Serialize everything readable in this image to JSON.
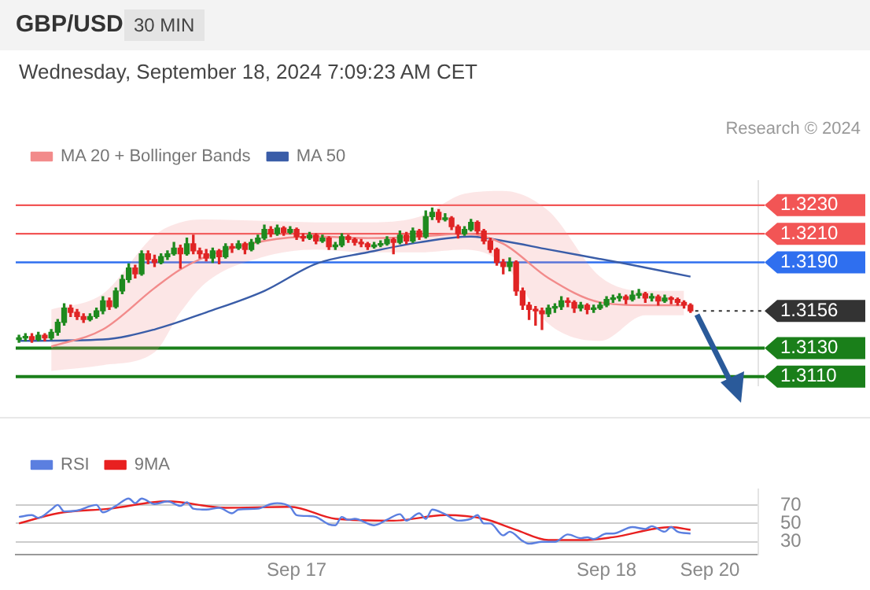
{
  "chart_data": [
    {
      "type": "candlestick",
      "title": "GBP/USD",
      "subtitle": "30 MIN",
      "annotations": [
        "Wednesday, September 18, 2024 7:09:23 AM CET",
        "Research © 2024"
      ],
      "categories": [
        null,
        null,
        null,
        null,
        null,
        null,
        null,
        null,
        null,
        null,
        null,
        null,
        null,
        null,
        null,
        null,
        null,
        null,
        null,
        null,
        null,
        null,
        null,
        null,
        null,
        null,
        null,
        null,
        null,
        null,
        null,
        null,
        null,
        null,
        null,
        null,
        null,
        null,
        null,
        null,
        null,
        null,
        null,
        null,
        null,
        null,
        null,
        null,
        null,
        null,
        null,
        null,
        null,
        null,
        null,
        null,
        null,
        null,
        null,
        null,
        null,
        null,
        null,
        null,
        null,
        null,
        null,
        null,
        null,
        null,
        null,
        null,
        null,
        null,
        null,
        null,
        null,
        null,
        null,
        null,
        null,
        null,
        null,
        null,
        null,
        null,
        null,
        null,
        null,
        null,
        null,
        null,
        null,
        null,
        null,
        null,
        null,
        null,
        null,
        null,
        null,
        null,
        null,
        null,
        null,
        null,
        null,
        null,
        null,
        null,
        null,
        null,
        null,
        null,
        null
      ],
      "ohlc": [
        [
          1.3136,
          1.3139,
          1.3134,
          1.3137
        ],
        [
          1.3137,
          1.314,
          1.3135,
          1.3138
        ],
        [
          1.3138,
          1.314,
          1.3134,
          1.3136
        ],
        [
          1.3136,
          1.3141,
          1.3135,
          1.3139
        ],
        [
          1.3139,
          1.314,
          1.3135,
          1.3137
        ],
        [
          1.3137,
          1.3143,
          1.3136,
          1.3141
        ],
        [
          1.3141,
          1.315,
          1.3139,
          1.3148
        ],
        [
          1.3148,
          1.3161,
          1.3146,
          1.3158
        ],
        [
          1.3158,
          1.316,
          1.3152,
          1.3155
        ],
        [
          1.3155,
          1.3157,
          1.315,
          1.3152
        ],
        [
          1.3152,
          1.3154,
          1.3148,
          1.315
        ],
        [
          1.315,
          1.3154,
          1.3149,
          1.3152
        ],
        [
          1.3152,
          1.3158,
          1.3151,
          1.3156
        ],
        [
          1.3156,
          1.3166,
          1.3154,
          1.3163
        ],
        [
          1.3163,
          1.3165,
          1.3157,
          1.3159
        ],
        [
          1.3159,
          1.3172,
          1.3158,
          1.317
        ],
        [
          1.317,
          1.3181,
          1.3168,
          1.3178
        ],
        [
          1.3178,
          1.3189,
          1.3176,
          1.3186
        ],
        [
          1.3186,
          1.3188,
          1.3179,
          1.3182
        ],
        [
          1.3182,
          1.3198,
          1.3181,
          1.3196
        ],
        [
          1.3196,
          1.3198,
          1.3189,
          1.3192
        ],
        [
          1.3192,
          1.3195,
          1.3187,
          1.319
        ],
        [
          1.319,
          1.3196,
          1.3189,
          1.3194
        ],
        [
          1.3194,
          1.3198,
          1.3192,
          1.3196
        ],
        [
          1.3196,
          1.3204,
          1.3195,
          1.32
        ],
        [
          1.32,
          1.3202,
          1.3186,
          1.3196
        ],
        [
          1.3196,
          1.3207,
          1.3195,
          1.3203
        ],
        [
          1.3203,
          1.3209,
          1.3196,
          1.3198
        ],
        [
          1.3198,
          1.32,
          1.3193,
          1.3196
        ],
        [
          1.3196,
          1.3199,
          1.3191,
          1.3193
        ],
        [
          1.3193,
          1.32,
          1.319,
          1.3198
        ],
        [
          1.3198,
          1.3199,
          1.3189,
          1.3194
        ],
        [
          1.3194,
          1.3203,
          1.3193,
          1.3201
        ],
        [
          1.3201,
          1.3203,
          1.3197,
          1.32
        ],
        [
          1.32,
          1.3205,
          1.3199,
          1.3203
        ],
        [
          1.3203,
          1.3204,
          1.3196,
          1.3199
        ],
        [
          1.3199,
          1.3206,
          1.3198,
          1.3204
        ],
        [
          1.3204,
          1.3209,
          1.3203,
          1.3207
        ],
        [
          1.3207,
          1.3216,
          1.3206,
          1.3213
        ],
        [
          1.3213,
          1.3215,
          1.3208,
          1.321
        ],
        [
          1.321,
          1.3216,
          1.3209,
          1.3214
        ],
        [
          1.3214,
          1.3215,
          1.3209,
          1.3211
        ],
        [
          1.3211,
          1.3215,
          1.321,
          1.3213
        ],
        [
          1.3213,
          1.3214,
          1.3206,
          1.3208
        ],
        [
          1.3208,
          1.321,
          1.3205,
          1.3207
        ],
        [
          1.3207,
          1.3211,
          1.3206,
          1.3209
        ],
        [
          1.3209,
          1.321,
          1.3203,
          1.3205
        ],
        [
          1.3205,
          1.3209,
          1.3204,
          1.3207
        ],
        [
          1.3207,
          1.3208,
          1.3199,
          1.3201
        ],
        [
          1.3201,
          1.3204,
          1.3199,
          1.3202
        ],
        [
          1.3202,
          1.321,
          1.3201,
          1.3208
        ],
        [
          1.3208,
          1.3209,
          1.3204,
          1.3206
        ],
        [
          1.3206,
          1.3207,
          1.3202,
          1.3204
        ],
        [
          1.3204,
          1.3206,
          1.3201,
          1.3203
        ],
        [
          1.3203,
          1.3204,
          1.3199,
          1.3201
        ],
        [
          1.3201,
          1.3204,
          1.32,
          1.3202
        ],
        [
          1.3202,
          1.3205,
          1.3201,
          1.3203
        ],
        [
          1.3203,
          1.3208,
          1.3202,
          1.3206
        ],
        [
          1.3206,
          1.3207,
          1.3196,
          1.3204
        ],
        [
          1.3204,
          1.3212,
          1.3203,
          1.3209
        ],
        [
          1.3209,
          1.3211,
          1.3203,
          1.3205
        ],
        [
          1.3205,
          1.3214,
          1.3204,
          1.3212
        ],
        [
          1.3212,
          1.3213,
          1.3206,
          1.3208
        ],
        [
          1.3208,
          1.3226,
          1.3207,
          1.3222
        ],
        [
          1.3222,
          1.3228,
          1.322,
          1.3225
        ],
        [
          1.3225,
          1.3227,
          1.3218,
          1.322
        ],
        [
          1.322,
          1.3224,
          1.3219,
          1.3221
        ],
        [
          1.3221,
          1.3222,
          1.3213,
          1.3215
        ],
        [
          1.3215,
          1.3216,
          1.3207,
          1.321
        ],
        [
          1.321,
          1.3215,
          1.3209,
          1.3213
        ],
        [
          1.3213,
          1.322,
          1.3212,
          1.3218
        ],
        [
          1.3218,
          1.3219,
          1.321,
          1.3212
        ],
        [
          1.3212,
          1.3213,
          1.3203,
          1.3205
        ],
        [
          1.3205,
          1.3207,
          1.3197,
          1.3199
        ],
        [
          1.3199,
          1.32,
          1.3188,
          1.319
        ],
        [
          1.319,
          1.3192,
          1.3182,
          1.3187
        ],
        [
          1.3187,
          1.3193,
          1.3184,
          1.319
        ],
        [
          1.319,
          1.3191,
          1.3167,
          1.317
        ],
        [
          1.317,
          1.3172,
          1.3157,
          1.316
        ],
        [
          1.316,
          1.3162,
          1.315,
          1.3157
        ],
        [
          1.3157,
          1.3159,
          1.3146,
          1.3156
        ],
        [
          1.3156,
          1.3158,
          1.3143,
          1.3154
        ],
        [
          1.3154,
          1.316,
          1.3152,
          1.3158
        ],
        [
          1.3158,
          1.3161,
          1.3155,
          1.3159
        ],
        [
          1.3159,
          1.3166,
          1.3157,
          1.3163
        ],
        [
          1.3163,
          1.3165,
          1.3159,
          1.3162
        ],
        [
          1.3162,
          1.3163,
          1.3155,
          1.3158
        ],
        [
          1.3158,
          1.3162,
          1.3156,
          1.316
        ],
        [
          1.316,
          1.3161,
          1.3154,
          1.3157
        ],
        [
          1.3157,
          1.316,
          1.3155,
          1.3158
        ],
        [
          1.3158,
          1.3162,
          1.3157,
          1.316
        ],
        [
          1.316,
          1.3166,
          1.3159,
          1.3164
        ],
        [
          1.3164,
          1.3167,
          1.3162,
          1.3165
        ],
        [
          1.3165,
          1.3168,
          1.3163,
          1.3166
        ],
        [
          1.3166,
          1.3167,
          1.3161,
          1.3164
        ],
        [
          1.3164,
          1.317,
          1.3163,
          1.3167
        ],
        [
          1.3167,
          1.3171,
          1.3165,
          1.3168
        ],
        [
          1.3168,
          1.3169,
          1.3162,
          1.3165
        ],
        [
          1.3165,
          1.3168,
          1.3163,
          1.3166
        ],
        [
          1.3166,
          1.3167,
          1.316,
          1.3163
        ],
        [
          1.3163,
          1.3167,
          1.3162,
          1.3165
        ],
        [
          1.3165,
          1.3166,
          1.3161,
          1.3164
        ],
        [
          1.3164,
          1.3165,
          1.316,
          1.3162
        ],
        [
          1.3162,
          1.3163,
          1.3158,
          1.316
        ],
        [
          1.316,
          1.3161,
          1.3155,
          1.3156
        ],
        null,
        null,
        null,
        null,
        null,
        null,
        null,
        null,
        null,
        null
      ],
      "series": [
        {
          "name": "MA 20 + Bollinger Bands",
          "type": "line",
          "color": "#f28b8b",
          "values": [
            null,
            null,
            null,
            null,
            null,
            1.3131,
            null,
            null,
            null,
            null,
            null,
            null,
            null,
            1.3143,
            null,
            null,
            null,
            null,
            null,
            null,
            null,
            1.3172,
            null,
            null,
            null,
            1.3185,
            null,
            null,
            null,
            1.3194,
            null,
            null,
            null,
            null,
            null,
            null,
            null,
            null,
            1.3205,
            null,
            null,
            null,
            null,
            null,
            null,
            null,
            1.3208,
            null,
            null,
            null,
            null,
            null,
            null,
            null,
            1.3207,
            null,
            null,
            null,
            null,
            null,
            null,
            null,
            1.3208,
            null,
            null,
            null,
            null,
            null,
            null,
            1.321,
            null,
            null,
            null,
            null,
            null,
            1.3203,
            null,
            null,
            null,
            null,
            null,
            null,
            1.3179,
            null,
            null,
            null,
            null,
            null,
            null,
            null,
            1.3162,
            null,
            null,
            null,
            null,
            null,
            null,
            1.316,
            null,
            null,
            null,
            null,
            null,
            1.316,
            null,
            null,
            null,
            null,
            null,
            null,
            null,
            null,
            null,
            null,
            null
          ],
          "lower": [
            null,
            null,
            null,
            null,
            null,
            1.3114,
            null,
            null,
            null,
            null,
            null,
            null,
            null,
            1.3118,
            null,
            null,
            null,
            null,
            null,
            null,
            null,
            1.3127,
            null,
            null,
            null,
            1.3155,
            null,
            null,
            null,
            1.3176,
            null,
            null,
            null,
            null,
            null,
            null,
            null,
            null,
            1.3194,
            null,
            null,
            null,
            null,
            null,
            null,
            null,
            1.3199,
            null,
            null,
            null,
            null,
            null,
            null,
            null,
            1.3197,
            null,
            null,
            null,
            null,
            null,
            null,
            null,
            1.3197,
            null,
            null,
            null,
            null,
            null,
            null,
            1.3199,
            null,
            null,
            null,
            null,
            null,
            1.3189,
            null,
            null,
            null,
            null,
            null,
            null,
            1.3147,
            null,
            null,
            null,
            null,
            null,
            null,
            null,
            1.3135,
            null,
            null,
            null,
            null,
            null,
            null,
            1.3153,
            null,
            null,
            null,
            null,
            null,
            1.3153,
            null,
            null,
            null,
            null,
            null,
            null,
            null,
            null,
            null,
            null,
            null
          ],
          "upper": [
            null,
            null,
            null,
            null,
            null,
            1.3157,
            null,
            null,
            null,
            null,
            null,
            null,
            null,
            1.3168,
            null,
            null,
            null,
            null,
            null,
            null,
            null,
            1.3209,
            null,
            null,
            null,
            1.3218,
            null,
            null,
            null,
            1.322,
            null,
            null,
            null,
            null,
            null,
            null,
            null,
            null,
            1.3219,
            null,
            null,
            null,
            null,
            null,
            null,
            null,
            1.3218,
            null,
            null,
            null,
            null,
            null,
            null,
            null,
            1.3218,
            null,
            null,
            null,
            null,
            null,
            null,
            null,
            1.3222,
            null,
            null,
            null,
            null,
            null,
            null,
            1.3238,
            null,
            null,
            null,
            null,
            null,
            1.324,
            null,
            null,
            null,
            null,
            null,
            null,
            1.3226,
            null,
            null,
            null,
            null,
            null,
            null,
            null,
            1.318,
            null,
            null,
            null,
            null,
            null,
            null,
            1.317,
            null,
            null,
            null,
            null,
            null,
            1.317,
            null,
            null,
            null,
            null,
            null,
            null,
            null,
            null,
            null,
            null,
            null
          ]
        },
        {
          "name": "MA 50",
          "type": "line",
          "color": "#3a5da8",
          "values": [
            1.3135,
            null,
            null,
            null,
            null,
            null,
            null,
            null,
            null,
            null,
            null,
            null,
            null,
            1.3136,
            null,
            null,
            null,
            null,
            null,
            null,
            null,
            1.3143,
            null,
            null,
            null,
            null,
            null,
            null,
            null,
            1.3155,
            null,
            null,
            null,
            null,
            null,
            null,
            null,
            null,
            1.317,
            null,
            null,
            null,
            null,
            null,
            null,
            null,
            1.3189,
            null,
            null,
            null,
            null,
            null,
            null,
            null,
            1.3197,
            null,
            null,
            null,
            null,
            null,
            null,
            null,
            1.3204,
            null,
            null,
            null,
            null,
            null,
            null,
            null,
            1.3208,
            null,
            null,
            null,
            null,
            1.3205,
            null,
            null,
            null,
            null,
            null,
            null,
            1.3199,
            null,
            null,
            null,
            null,
            null,
            null,
            null,
            null,
            null,
            null,
            null,
            1.3189,
            null,
            null,
            null,
            null,
            null,
            null,
            null,
            null,
            null,
            1.318,
            null,
            null,
            null,
            null,
            null,
            null,
            null,
            null,
            null,
            null
          ]
        }
      ],
      "ylim": [
        1.3104,
        1.3247
      ],
      "yticks": [
        {
          "value": 1.311,
          "label": "1.3110"
        },
        {
          "value": 1.313,
          "label": "1.3130"
        },
        1.3156,
        {
          "value": 1.319,
          "label": "1.3190"
        },
        {
          "value": 1.321,
          "label": "1.3210"
        },
        {
          "value": 1.323,
          "label": "1.3230"
        }
      ],
      "ref_lines": [
        {
          "axis": "y",
          "value": 1.323,
          "color": "#f25555"
        },
        {
          "axis": "y",
          "value": 1.321,
          "color": "#f25555"
        },
        {
          "axis": "y",
          "value": 1.319,
          "color": "#2f6fef"
        },
        {
          "axis": "y",
          "value": 1.3156,
          "color": "#333333",
          "line_style": "dotted"
        },
        {
          "axis": "y",
          "value": 1.313,
          "color": "#1a7f1a"
        },
        {
          "axis": "y",
          "value": 1.311,
          "color": "#1a7f1a"
        }
      ],
      "legend": "top left",
      "marker": "none"
    },
    {
      "type": "line",
      "categories": [
        null,
        null,
        null,
        null,
        null,
        null,
        null,
        null,
        null,
        null,
        null,
        null,
        null,
        null,
        null,
        null,
        null,
        null,
        null,
        null,
        null,
        null,
        null,
        null,
        null,
        null,
        null,
        null,
        null,
        null,
        null,
        null,
        null,
        null,
        null,
        null,
        null,
        null,
        null,
        null,
        null,
        null,
        null,
        "Sep 17",
        null,
        null,
        null,
        null,
        null,
        null,
        null,
        null,
        null,
        null,
        null,
        null,
        null,
        null,
        null,
        null,
        null,
        null,
        null,
        null,
        null,
        null,
        null,
        null,
        null,
        null,
        null,
        null,
        null,
        null,
        null,
        null,
        null,
        null,
        null,
        null,
        null,
        null,
        null,
        null,
        null,
        null,
        null,
        null,
        null,
        null,
        null,
        "Sep 18",
        null,
        null,
        null,
        null,
        null,
        null,
        null,
        null,
        null,
        null,
        null,
        null,
        null,
        null,
        null,
        "Sep 20",
        null,
        null,
        null,
        null,
        null,
        null,
        null
      ],
      "series": [
        {
          "name": "RSI",
          "color": "#5b7fe0",
          "values": [
            57,
            null,
            59,
            56,
            null,
            65,
            70,
            63,
            null,
            64,
            null,
            null,
            70,
            62,
            null,
            69,
            null,
            77,
            72,
            77,
            null,
            71,
            null,
            74,
            null,
            69,
            73,
            66,
            null,
            65,
            null,
            67,
            null,
            61,
            65,
            null,
            null,
            66,
            null,
            71,
            72,
            null,
            68,
            59,
            null,
            58,
            57,
            null,
            49,
            48,
            57,
            54,
            55,
            null,
            null,
            48,
            null,
            54,
            null,
            60,
            53,
            null,
            61,
            55,
            65,
            null,
            60,
            null,
            53,
            null,
            55,
            59,
            50,
            50,
            null,
            37,
            41,
            null,
            31,
            28,
            null,
            30,
            null,
            30,
            null,
            38,
            null,
            34,
            35,
            33,
            null,
            39,
            39,
            null,
            null,
            46,
            null,
            44,
            47,
            null,
            41,
            46,
            41,
            null,
            39,
            null,
            null,
            null,
            null,
            null,
            null,
            null,
            null,
            null,
            null
          ]
        },
        {
          "name": "9MA",
          "color": "#e82020",
          "values": [
            50,
            null,
            null,
            null,
            null,
            null,
            61,
            null,
            null,
            null,
            null,
            null,
            null,
            null,
            66,
            null,
            null,
            null,
            null,
            null,
            null,
            null,
            null,
            74,
            null,
            null,
            null,
            null,
            null,
            null,
            null,
            null,
            67,
            null,
            null,
            null,
            null,
            null,
            null,
            null,
            null,
            null,
            68,
            null,
            null,
            null,
            null,
            null,
            null,
            55,
            null,
            null,
            null,
            null,
            null,
            null,
            null,
            null,
            53,
            null,
            null,
            null,
            null,
            null,
            null,
            null,
            59,
            null,
            null,
            null,
            null,
            null,
            55,
            null,
            null,
            null,
            null,
            43,
            null,
            null,
            null,
            null,
            32,
            null,
            null,
            null,
            null,
            null,
            32,
            null,
            null,
            null,
            35,
            null,
            null,
            null,
            null,
            null,
            null,
            null,
            null,
            46,
            null,
            null,
            43,
            null,
            null,
            null,
            null,
            null,
            null,
            null,
            null,
            null,
            null
          ]
        }
      ],
      "ylim": [
        16,
        87
      ],
      "yticks": [
        30,
        50,
        70
      ],
      "grid": "y",
      "legend": "top left",
      "marker": "none"
    }
  ]
}
